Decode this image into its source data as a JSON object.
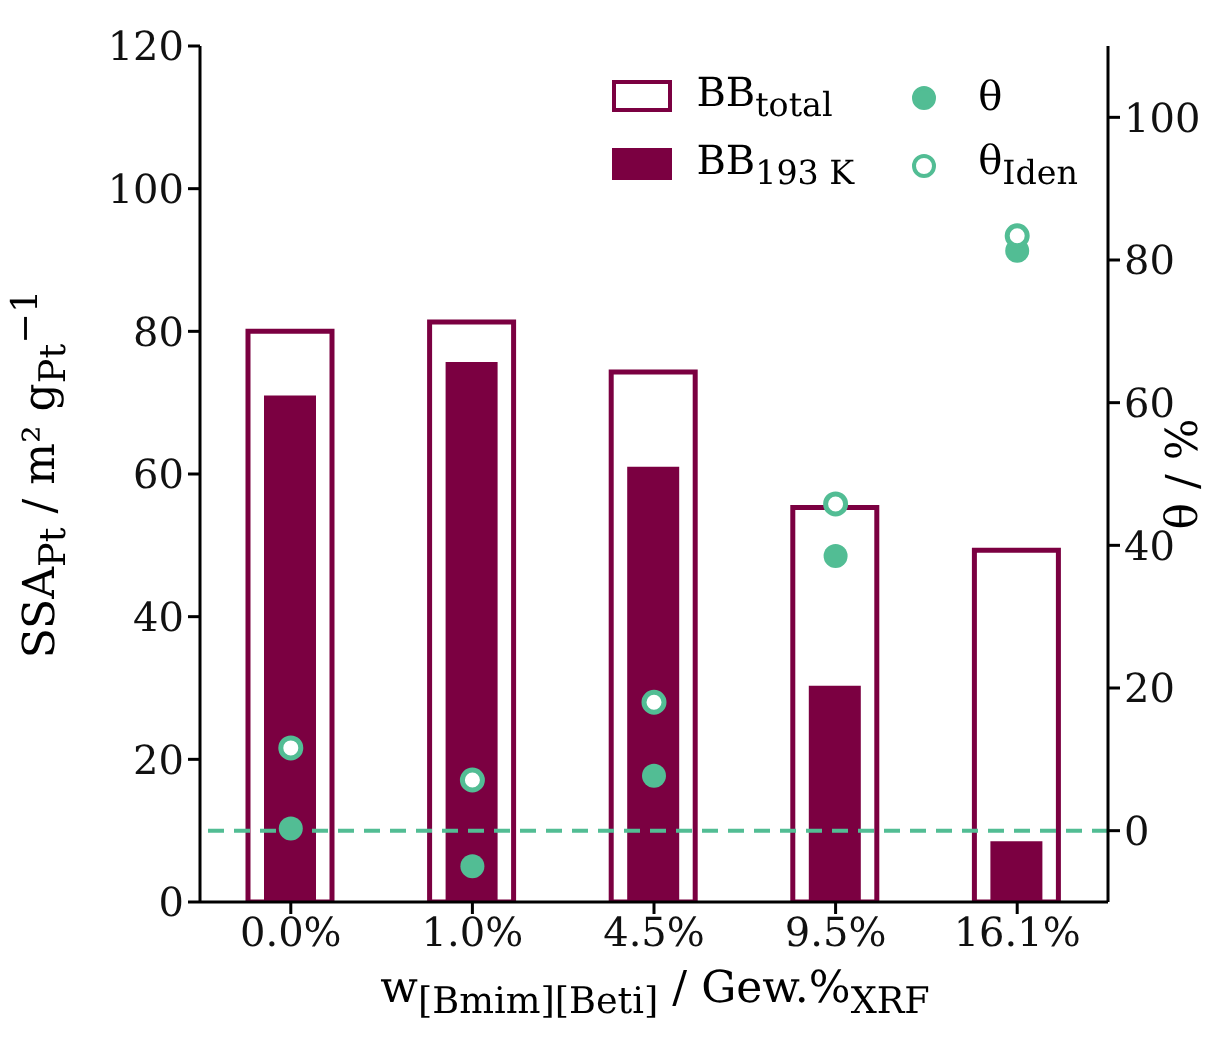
{
  "chart_data": {
    "type": "bar",
    "xlabel": "w$_{[Bmim][Beti]}$ / Gew.%$_{XRF}$",
    "ylabel": "SSA$_{Pt}$ / m² g$_{Pt}$$^{−1}$",
    "y2label": "θ / %",
    "categories": [
      "0.0%",
      "1.0%",
      "4.5%",
      "9.5%",
      "16.1%"
    ],
    "series": [
      {
        "name": "BB$_{total}$",
        "color": "#7b0041",
        "values": [
          80,
          81.3,
          74.3,
          55.3,
          49.3
        ]
      },
      {
        "name": "BB$_{193 K}$",
        "color": "#7b0041",
        "values": [
          71,
          75.7,
          61,
          30.3,
          8.5
        ]
      },
      {
        "name": "θ",
        "type": "scatter",
        "axis": "y2",
        "color": "#52bd94",
        "values": [
          0.3,
          -5,
          7.7,
          38.5,
          81.3
        ]
      },
      {
        "name": "θ$_{Iden}$",
        "type": "scatter",
        "axis": "y2",
        "color": "#52bd94",
        "values": [
          11.6,
          7.1,
          18,
          45.8,
          83.4
        ]
      }
    ],
    "ylim": [
      0,
      120
    ],
    "yticks": [
      0,
      20,
      40,
      60,
      80,
      100,
      120
    ],
    "y2lim": [
      -10,
      110
    ],
    "y2ticks": [
      0,
      20,
      40,
      60,
      80,
      100
    ],
    "ref_lines": [
      {
        "axis": "y2",
        "value": 0,
        "color": "#52bd94",
        "line_style": "dashed"
      }
    ],
    "legend": "top right",
    "marker": "circle",
    "grid": false
  }
}
